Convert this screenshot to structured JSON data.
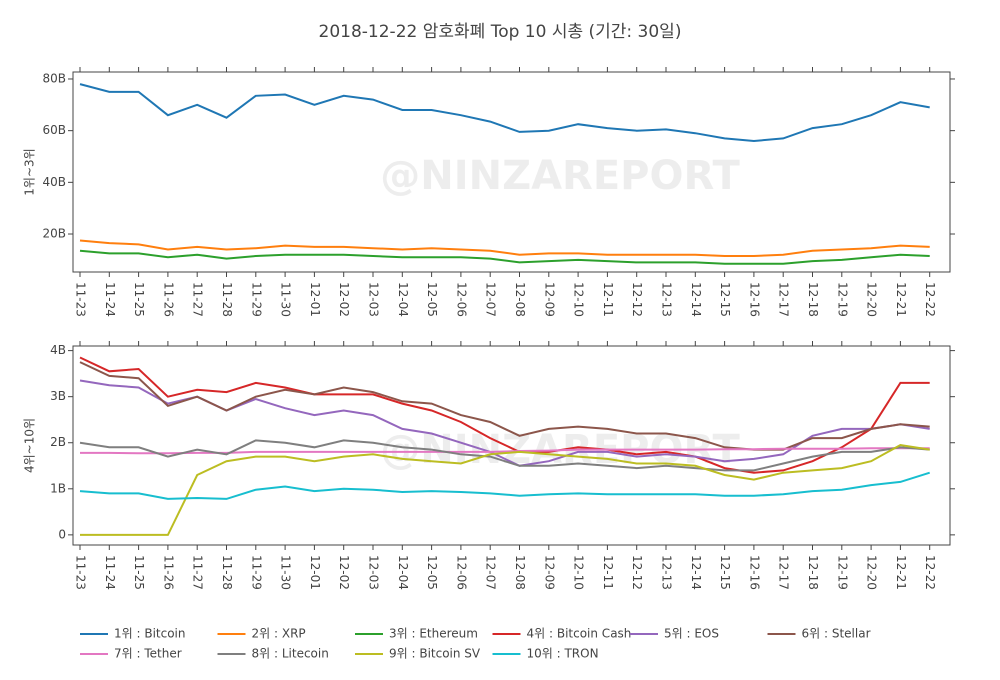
{
  "title": "2018-12-22 암호화폐 Top 10 시총 (기간: 30일)",
  "watermark": "@NINZAREPORT",
  "chart_data": [
    {
      "type": "line",
      "ylabel": "1위~3위",
      "categories": [
        "11-23",
        "11-24",
        "11-25",
        "11-26",
        "11-27",
        "11-28",
        "11-29",
        "11-30",
        "12-01",
        "12-02",
        "12-03",
        "12-04",
        "12-05",
        "12-06",
        "12-07",
        "12-08",
        "12-09",
        "12-10",
        "12-11",
        "12-12",
        "12-13",
        "12-14",
        "12-15",
        "12-16",
        "12-17",
        "12-18",
        "12-19",
        "12-20",
        "12-21",
        "12-22"
      ],
      "ylim": [
        5.3,
        82.7
      ],
      "yticks": [
        {
          "value": 20,
          "label": "20B"
        },
        {
          "value": 40,
          "label": "40B"
        },
        {
          "value": 60,
          "label": "60B"
        },
        {
          "value": 80,
          "label": "80B"
        }
      ],
      "series": [
        {
          "name": "1위 : Bitcoin",
          "color": "#1f77b4",
          "values": [
            78,
            75,
            75,
            66,
            70,
            65,
            73.5,
            74,
            70,
            73.5,
            72,
            68,
            68,
            66,
            63.5,
            59.5,
            60,
            62.5,
            61,
            60,
            60.5,
            59,
            57,
            56,
            57,
            61,
            62.5,
            66,
            71,
            69
          ]
        },
        {
          "name": "2위 : XRP",
          "color": "#ff7f0e",
          "values": [
            17.5,
            16.5,
            16,
            14,
            15,
            14,
            14.5,
            15.5,
            15,
            15,
            14.5,
            14,
            14.5,
            14,
            13.5,
            12,
            12.5,
            12.5,
            12,
            12,
            12,
            12,
            11.5,
            11.5,
            12,
            13.5,
            14,
            14.5,
            15.5,
            15
          ]
        },
        {
          "name": "3위 : Ethereum",
          "color": "#2ca02c",
          "values": [
            13.5,
            12.5,
            12.5,
            11,
            12,
            10.5,
            11.5,
            12,
            12,
            12,
            11.5,
            11,
            11,
            11,
            10.5,
            9,
            9.5,
            10,
            9.5,
            9,
            9,
            9,
            8.5,
            8.5,
            8.5,
            9.5,
            10,
            11,
            12,
            11.5
          ]
        }
      ]
    },
    {
      "type": "line",
      "ylabel": "4위~10위",
      "categories": [
        "11-23",
        "11-24",
        "11-25",
        "11-26",
        "11-27",
        "11-28",
        "11-29",
        "11-30",
        "12-01",
        "12-02",
        "12-03",
        "12-04",
        "12-05",
        "12-06",
        "12-07",
        "12-08",
        "12-09",
        "12-10",
        "12-11",
        "12-12",
        "12-13",
        "12-14",
        "12-15",
        "12-16",
        "12-17",
        "12-18",
        "12-19",
        "12-20",
        "12-21",
        "12-22"
      ],
      "ylim": [
        -0.22,
        4.1
      ],
      "yticks": [
        0,
        {
          "value": 1,
          "label": "1B"
        },
        {
          "value": 2,
          "label": "2B"
        },
        {
          "value": 3,
          "label": "3B"
        },
        {
          "value": 4,
          "label": "4B"
        }
      ],
      "series": [
        {
          "name": "4위 : Bitcoin Cash",
          "color": "#d62728",
          "values": [
            3.85,
            3.55,
            3.6,
            3.0,
            3.15,
            3.1,
            3.3,
            3.2,
            3.05,
            3.05,
            3.05,
            2.85,
            2.7,
            2.45,
            2.1,
            1.8,
            1.8,
            1.9,
            1.85,
            1.75,
            1.8,
            1.7,
            1.45,
            1.35,
            1.4,
            1.6,
            1.9,
            2.3,
            3.3,
            3.3
          ]
        },
        {
          "name": "5위 : EOS",
          "color": "#9467bd",
          "values": [
            3.35,
            3.25,
            3.2,
            2.85,
            3.0,
            2.7,
            2.95,
            2.75,
            2.6,
            2.7,
            2.6,
            2.3,
            2.2,
            2.0,
            1.8,
            1.5,
            1.6,
            1.8,
            1.8,
            1.7,
            1.75,
            1.7,
            1.6,
            1.65,
            1.75,
            2.15,
            2.3,
            2.3,
            2.4,
            2.3
          ]
        },
        {
          "name": "6위 : Stellar",
          "color": "#8c564b",
          "values": [
            3.75,
            3.45,
            3.4,
            2.8,
            3.0,
            2.7,
            3.0,
            3.15,
            3.05,
            3.2,
            3.1,
            2.9,
            2.85,
            2.6,
            2.45,
            2.15,
            2.3,
            2.35,
            2.3,
            2.2,
            2.2,
            2.1,
            1.9,
            1.85,
            1.85,
            2.1,
            2.1,
            2.3,
            2.4,
            2.35
          ]
        },
        {
          "name": "7위 : Tether",
          "color": "#e377c2",
          "values": [
            1.78,
            1.78,
            1.77,
            1.77,
            1.78,
            1.78,
            1.8,
            1.8,
            1.8,
            1.8,
            1.8,
            1.8,
            1.8,
            1.8,
            1.8,
            1.82,
            1.83,
            1.85,
            1.85,
            1.85,
            1.85,
            1.85,
            1.86,
            1.86,
            1.87,
            1.87,
            1.87,
            1.88,
            1.88,
            1.88
          ]
        },
        {
          "name": "8위 : Litecoin",
          "color": "#7f7f7f",
          "values": [
            2.0,
            1.9,
            1.9,
            1.7,
            1.85,
            1.75,
            2.05,
            2.0,
            1.9,
            2.05,
            2.0,
            1.9,
            1.85,
            1.75,
            1.7,
            1.5,
            1.5,
            1.55,
            1.5,
            1.45,
            1.5,
            1.45,
            1.4,
            1.4,
            1.55,
            1.7,
            1.8,
            1.8,
            1.9,
            1.85
          ]
        },
        {
          "name": "9위 : Bitcoin SV",
          "color": "#bcbd22",
          "values": [
            0,
            0,
            0,
            0,
            1.3,
            1.6,
            1.7,
            1.7,
            1.6,
            1.7,
            1.75,
            1.65,
            1.6,
            1.55,
            1.75,
            1.8,
            1.75,
            1.7,
            1.65,
            1.55,
            1.55,
            1.5,
            1.3,
            1.2,
            1.35,
            1.4,
            1.45,
            1.6,
            1.95,
            1.85
          ]
        },
        {
          "name": "10위 : TRON",
          "color": "#17becf",
          "values": [
            0.95,
            0.9,
            0.9,
            0.78,
            0.8,
            0.78,
            0.98,
            1.05,
            0.95,
            1.0,
            0.98,
            0.93,
            0.95,
            0.93,
            0.9,
            0.85,
            0.88,
            0.9,
            0.88,
            0.88,
            0.88,
            0.88,
            0.85,
            0.85,
            0.88,
            0.95,
            0.98,
            1.08,
            1.15,
            1.35
          ]
        }
      ]
    }
  ]
}
